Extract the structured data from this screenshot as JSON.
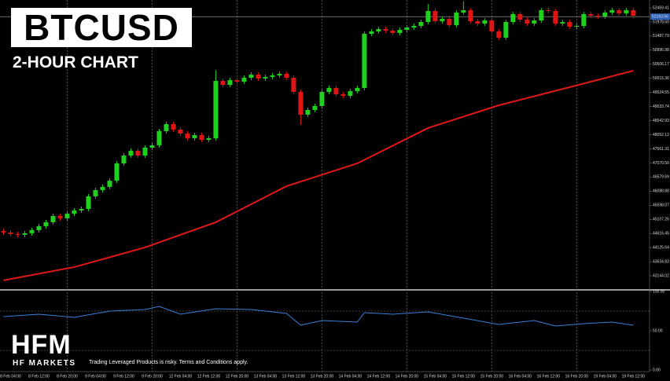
{
  "header": {
    "title": "BTCUSD",
    "subtitle": "2-HOUR CHART"
  },
  "footer": {
    "logo": "HFM",
    "brand": "HF MARKETS",
    "disclaimer": "Trading Leveraged Products is risky. Terms and Conditions apply."
  },
  "chart_data": [
    {
      "type": "candlestick",
      "up_color": "#1fd01f",
      "down_color": "#e01414",
      "categories": [
        null,
        "8 Feb 04:00",
        null,
        null,
        null,
        "8 Feb 12:00",
        null,
        null,
        null,
        "8 Feb 20:00",
        null,
        null,
        null,
        "9 Feb 04:00",
        null,
        null,
        null,
        "9 Feb 12:00",
        null,
        null,
        null,
        "9 Feb 20:00",
        null,
        null,
        null,
        "12 Feb 04:00",
        null,
        null,
        null,
        "12 Feb 12:00",
        null,
        null,
        null,
        "12 Feb 20:00",
        null,
        null,
        null,
        "13 Feb 04:00",
        null,
        null,
        null,
        "13 Feb 12:00",
        null,
        null,
        null,
        "13 Feb 20:00",
        null,
        null,
        null,
        "14 Feb 04:00",
        null,
        null,
        null,
        "14 Feb 12:00",
        null,
        null,
        null,
        "14 Feb 20:00",
        null,
        null,
        null,
        "15 Feb 04:00",
        null,
        null,
        null,
        "15 Feb 12:00",
        null,
        null,
        null,
        "15 Feb 20:00",
        null,
        null,
        null,
        "16 Feb 04:00",
        null,
        null,
        null,
        "16 Feb 12:00",
        null,
        null,
        null,
        "16 Feb 20:00",
        null,
        null,
        null,
        "19 Feb 04:00",
        null,
        null,
        null,
        "19 Feb 12:00"
      ],
      "open": [
        44700,
        44650,
        44596,
        44568,
        44623,
        44732,
        44869,
        45006,
        45224,
        45142,
        45307,
        45416,
        45471,
        45908,
        46127,
        46236,
        46455,
        47056,
        47330,
        47494,
        47330,
        47603,
        47685,
        48177,
        48423,
        48232,
        48095,
        47931,
        48041,
        47876,
        47931,
        49927,
        49790,
        49954,
        49900,
        50036,
        50146,
        50009,
        50064,
        50118,
        50173,
        50036,
        49544,
        48751,
        48915,
        49052,
        49544,
        49681,
        49462,
        49408,
        49572,
        49681,
        51567,
        51649,
        51731,
        51677,
        51595,
        51704,
        51786,
        51841,
        51977,
        52360,
        52005,
        52087,
        51868,
        52306,
        52388,
        52005,
        51923,
        52032,
        51649,
        51431,
        51977,
        52251,
        52059,
        51923,
        52032,
        52388,
        52360,
        51923,
        51977,
        51813,
        51841,
        52251,
        52196,
        52169,
        52306,
        52388,
        52278,
        52388
      ],
      "high": [
        44780,
        44730,
        44676,
        44703,
        44812,
        44949,
        45086,
        45304,
        45304,
        45387,
        45496,
        45551,
        45988,
        46207,
        46316,
        46535,
        47136,
        47410,
        47574,
        47574,
        47683,
        47765,
        48257,
        48503,
        48503,
        48312,
        48175,
        48121,
        48121,
        48011,
        50300,
        50007,
        50034,
        50034,
        50116,
        50226,
        50226,
        50144,
        50198,
        50253,
        50253,
        50116,
        49624,
        48995,
        49132,
        49624,
        49761,
        49761,
        49542,
        49652,
        49761,
        51647,
        51729,
        51811,
        51811,
        51757,
        51784,
        51866,
        51921,
        52057,
        52600,
        52440,
        52167,
        52167,
        52386,
        52700,
        52468,
        52085,
        52112,
        52112,
        51729,
        52057,
        52331,
        52331,
        52139,
        52112,
        52468,
        52468,
        52440,
        52057,
        52057,
        51921,
        52331,
        52331,
        52276,
        52386,
        52468,
        52468,
        52468,
        52468
      ],
      "low": [
        44570,
        44516,
        44488,
        44488,
        44543,
        44652,
        44789,
        44926,
        45062,
        45062,
        45227,
        45336,
        45391,
        45828,
        46047,
        46156,
        46375,
        46976,
        47250,
        47250,
        47250,
        47523,
        47605,
        48097,
        48152,
        48015,
        47851,
        47851,
        47796,
        47796,
        47851,
        49710,
        49710,
        49820,
        49820,
        49956,
        49929,
        49929,
        49984,
        50038,
        49956,
        49464,
        48400,
        48671,
        48835,
        48972,
        49464,
        49382,
        49328,
        49328,
        49492,
        49601,
        51487,
        51569,
        51597,
        51515,
        51515,
        51624,
        51706,
        51761,
        51897,
        51925,
        51925,
        51788,
        51788,
        52226,
        51925,
        51843,
        51843,
        51569,
        51351,
        51351,
        51897,
        51979,
        51843,
        51843,
        51952,
        52280,
        51843,
        51843,
        51733,
        51733,
        51761,
        52116,
        52089,
        52089,
        52226,
        52198,
        52198,
        52116
      ],
      "close": [
        44650,
        44596,
        44568,
        44623,
        44732,
        44869,
        45006,
        45224,
        45142,
        45307,
        45416,
        45471,
        45908,
        46127,
        46236,
        46455,
        47056,
        47330,
        47494,
        47330,
        47603,
        47685,
        48177,
        48423,
        48232,
        48095,
        47931,
        48041,
        47876,
        47931,
        49927,
        49790,
        49954,
        49900,
        50036,
        50146,
        50009,
        50064,
        50118,
        50173,
        50036,
        49544,
        48751,
        48915,
        49052,
        49544,
        49681,
        49462,
        49408,
        49572,
        49681,
        51567,
        51649,
        51731,
        51677,
        51595,
        51704,
        51786,
        51841,
        51977,
        52360,
        52005,
        52087,
        51868,
        52306,
        52388,
        52005,
        51923,
        52032,
        51649,
        51431,
        51977,
        52251,
        52059,
        51923,
        52032,
        52388,
        52360,
        51923,
        51977,
        51813,
        51841,
        52251,
        52196,
        52169,
        52306,
        52388,
        52278,
        52388,
        52196
      ],
      "overlay": {
        "color": "#e01818",
        "x": [
          0,
          10,
          20,
          30,
          40,
          50,
          60,
          70,
          80,
          89
        ],
        "values": [
          42983,
          43447,
          44131,
          45006,
          46263,
          47056,
          48287,
          49079,
          49708,
          50282
        ]
      },
      "current_price": 52163.56,
      "xlim": [
        -0.5,
        91.3
      ],
      "ylim": [
        42680,
        52743
      ],
      "yticks": [
        52469.41,
        {
          "value": 51978.6,
          "label": "51978.60"
        },
        51487.79,
        50996.98,
        50506.17,
        50015.36,
        49524.55,
        49033.74,
        48542.93,
        48052.12,
        47561.31,
        {
          "value": 47070.5,
          "label": "47070.50"
        },
        46579.69,
        46088.88,
        45598.07,
        45107.26,
        44616.45,
        44125.64,
        43634.83,
        43144.02
      ]
    },
    {
      "type": "line",
      "color": "#3a7fd8",
      "x": [
        0,
        5,
        10,
        15,
        20,
        22,
        25,
        30,
        35,
        40,
        42,
        45,
        50,
        51,
        55,
        60,
        65,
        70,
        75,
        78,
        82,
        86,
        89
      ],
      "values": [
        68,
        71,
        67,
        75,
        77,
        81,
        71,
        78,
        77,
        72,
        57,
        63,
        61,
        73,
        71,
        74,
        66,
        58,
        63,
        56,
        59,
        61,
        57
      ],
      "levels": [
        75,
        25
      ],
      "xlim": [
        -0.5,
        91.3
      ],
      "ylim": [
        0,
        100
      ],
      "yticks": [
        {
          "value": 100,
          "label": "100.00"
        },
        {
          "value": 50,
          "label": "50.00"
        },
        {
          "value": 0,
          "label": "0.00"
        }
      ]
    }
  ]
}
